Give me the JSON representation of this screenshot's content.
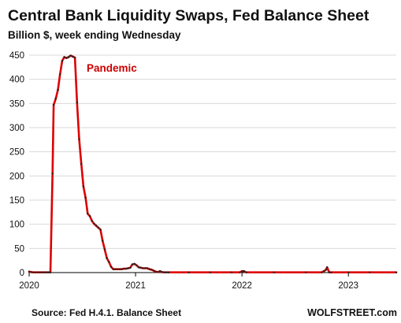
{
  "chart_data": {
    "type": "line",
    "title": "Central Bank Liquidity Swaps, Fed Balance Sheet",
    "subtitle": "Billion $, week ending Wednesday",
    "xlabel": "",
    "ylabel": "",
    "ylim": [
      0,
      450
    ],
    "xlim": [
      2020.0,
      2023.45
    ],
    "yticks": [
      "0",
      "50",
      "100",
      "150",
      "200",
      "250",
      "300",
      "350",
      "400",
      "450"
    ],
    "xticks": [
      {
        "label": "2020",
        "value": 2020
      },
      {
        "label": "2021",
        "value": 2021
      },
      {
        "label": "2022",
        "value": 2022
      },
      {
        "label": "2023",
        "value": 2023
      }
    ],
    "grid": true,
    "legend": "none",
    "line_color": "#dd0000",
    "marker_color": "#222222",
    "annotations": [
      {
        "text": "Pandemic",
        "color": "#cc0000"
      }
    ],
    "source": "Source: Fed H.4.1. Balance Sheet",
    "brand": "WOLFSTREET.com",
    "series": [
      {
        "x": [
          2020.0,
          2020.02,
          2020.04,
          2020.06,
          2020.08,
          2020.1,
          2020.12,
          2020.14,
          2020.16,
          2020.18,
          2020.2,
          2020.22,
          2020.23,
          2020.25,
          2020.27,
          2020.29,
          2020.31,
          2020.33,
          2020.35,
          2020.37,
          2020.39,
          2020.41,
          2020.43,
          2020.45,
          2020.47,
          2020.49,
          2020.51,
          2020.53,
          2020.55,
          2020.57,
          2020.59,
          2020.61,
          2020.63,
          2020.65,
          2020.67,
          2020.69,
          2020.71,
          2020.73,
          2020.75,
          2020.77,
          2020.79,
          2020.81,
          2020.83,
          2020.85,
          2020.87,
          2020.89,
          2020.91,
          2020.93,
          2020.95,
          2020.97,
          2020.99,
          2021.01,
          2021.03,
          2021.05,
          2021.07,
          2021.09,
          2021.11,
          2021.13,
          2021.15,
          2021.17,
          2021.19,
          2021.21,
          2021.23,
          2021.25,
          2021.27,
          2021.29,
          2021.31,
          2021.5,
          2021.7,
          2021.9,
          2021.98,
          2022.0,
          2022.02,
          2022.04,
          2022.3,
          2022.6,
          2022.75,
          2022.77,
          2022.79,
          2022.8,
          2022.82,
          2022.84,
          2023.0,
          2023.2,
          2023.45
        ],
        "y": [
          2,
          1,
          0.5,
          0.5,
          0.5,
          0.5,
          0.5,
          0.5,
          0.5,
          0.5,
          0.5,
          205,
          347,
          360,
          378,
          410,
          438,
          446,
          444,
          446,
          449,
          447,
          445,
          352,
          276,
          225,
          178,
          155,
          122,
          117,
          107,
          101,
          97,
          93,
          89,
          66,
          48,
          30,
          22,
          12,
          7,
          7,
          7,
          7,
          7,
          8,
          8,
          9,
          10,
          17,
          18,
          15,
          11,
          10,
          9,
          9,
          9,
          7,
          6,
          4,
          2,
          1,
          3,
          1,
          0.5,
          0.5,
          0.5,
          0.5,
          0.5,
          0.5,
          0.5,
          3,
          3,
          0.5,
          0.5,
          0.5,
          0.5,
          3,
          6,
          11,
          0.5,
          0.5,
          0.5,
          0.5,
          0.5
        ]
      }
    ]
  }
}
